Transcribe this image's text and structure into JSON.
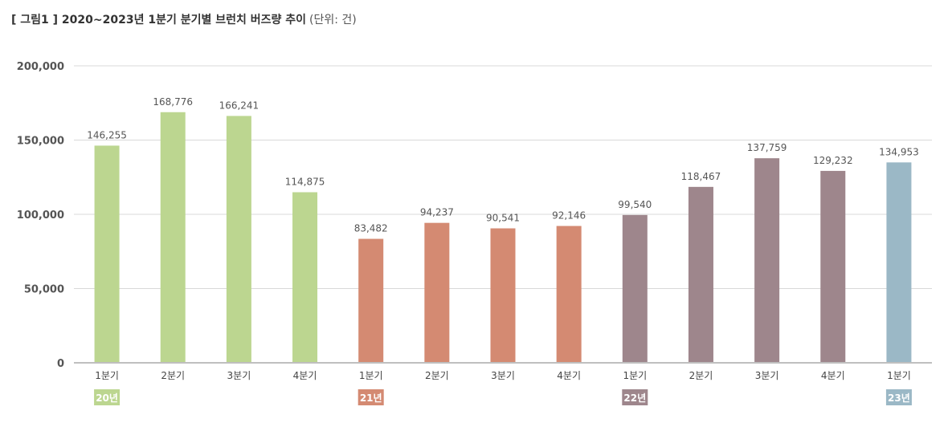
{
  "title": "[ 그림1 ] 2020~2023년 1분기 분기별 브런치 버즈량 추이",
  "unit": "(단위: 건)",
  "chart_data": {
    "type": "bar",
    "title": "[ 그림1 ] 2020~2023년 1분기 분기별 브런치 버즈량 추이",
    "unit": "(단위: 건)",
    "categories": [
      "1분기",
      "2분기",
      "3분기",
      "4분기",
      "1분기",
      "2분기",
      "3분기",
      "4분기",
      "1분기",
      "2분기",
      "3분기",
      "4분기",
      "1분기"
    ],
    "values": [
      146255,
      168776,
      166241,
      114875,
      83482,
      94237,
      90541,
      92146,
      99540,
      118467,
      137759,
      129232,
      134953
    ],
    "value_labels": [
      "146,255",
      "168,776",
      "166,241",
      "114,875",
      "83,482",
      "94,237",
      "90,541",
      "92,146",
      "99,540",
      "118,467",
      "137,759",
      "129,232",
      "134,953"
    ],
    "year_groups": [
      {
        "label": "20년",
        "start": 0,
        "color": "#bcd690"
      },
      {
        "label": "21년",
        "start": 4,
        "color": "#d48a72"
      },
      {
        "label": "22년",
        "start": 8,
        "color": "#9e868c"
      },
      {
        "label": "23년",
        "start": 12,
        "color": "#9bb8c6"
      }
    ],
    "bar_colors": [
      "#bcd690",
      "#bcd690",
      "#bcd690",
      "#bcd690",
      "#d48a72",
      "#d48a72",
      "#d48a72",
      "#d48a72",
      "#9e868c",
      "#9e868c",
      "#9e868c",
      "#9e868c",
      "#9bb8c6"
    ],
    "ylim": [
      0,
      200000
    ],
    "yticks": [
      0,
      50000,
      100000,
      150000,
      200000
    ],
    "ytick_labels": [
      "0",
      "50,000",
      "100,000",
      "150,000",
      "200,000"
    ],
    "grid": true
  }
}
